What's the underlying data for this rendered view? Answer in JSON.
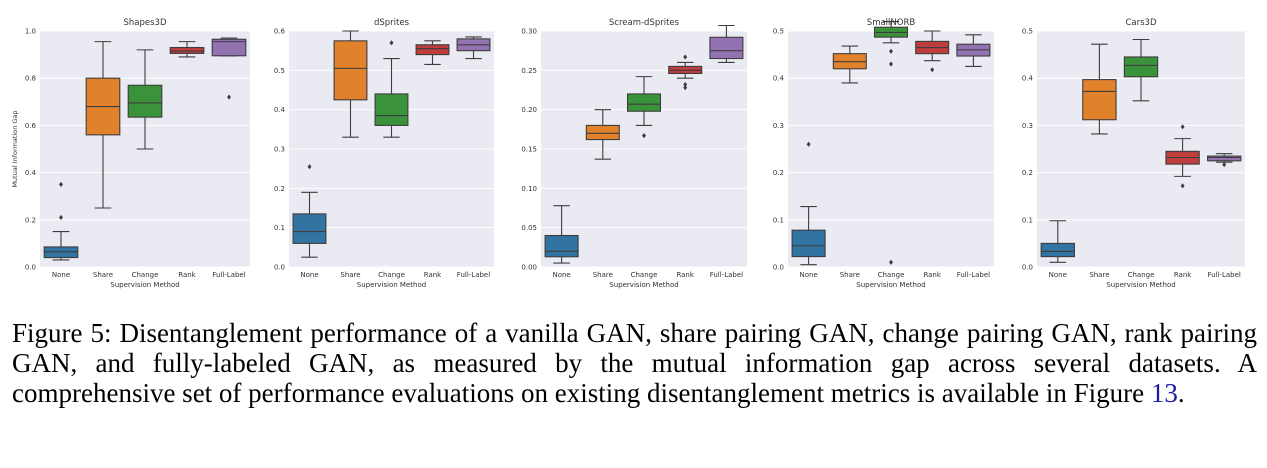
{
  "caption": {
    "text": "Figure 5: Disentanglement performance of a vanilla GAN, share pairing GAN, change pairing GAN, rank pairing GAN, and fully-labeled GAN, as measured by the mutual information gap across several datasets. A comprehensive set of performance evaluations on existing disentanglement metrics is available in Figure ",
    "ref": "13",
    "end": "."
  },
  "colors": {
    "None": "#3274a1",
    "Share": "#e1812c",
    "Change": "#3a923a",
    "Rank": "#c03d3e",
    "Full-Label": "#9372b2",
    "plot_bg": "#eaeaf2",
    "grid": "#ffffff",
    "outline": "#3d3d3d"
  },
  "chart_data": [
    {
      "type": "box",
      "title": "Shapes3D",
      "xlabel": "Supervision Method",
      "ylabel": "Mutual Information Gap",
      "categories": [
        "None",
        "Share",
        "Change",
        "Rank",
        "Full-Label"
      ],
      "ylim": [
        0,
        1.0
      ],
      "yticks": [
        0.0,
        0.2,
        0.4,
        0.6,
        0.8,
        1.0
      ],
      "ytick_labels": [
        "0.0",
        "0.2",
        "0.4",
        "0.6",
        "0.8",
        "1.0"
      ],
      "boxes": [
        {
          "whislo": 0.03,
          "q1": 0.04,
          "med": 0.065,
          "q3": 0.085,
          "whishi": 0.15,
          "fliers": [
            0.21,
            0.35
          ]
        },
        {
          "whislo": 0.25,
          "q1": 0.56,
          "med": 0.68,
          "q3": 0.8,
          "whishi": 0.955,
          "fliers": []
        },
        {
          "whislo": 0.5,
          "q1": 0.635,
          "med": 0.695,
          "q3": 0.77,
          "whishi": 0.92,
          "fliers": []
        },
        {
          "whislo": 0.89,
          "q1": 0.905,
          "med": 0.915,
          "q3": 0.93,
          "whishi": 0.955,
          "fliers": []
        },
        {
          "whislo": 0.895,
          "q1": 0.895,
          "med": 0.955,
          "q3": 0.965,
          "whishi": 0.97,
          "fliers": [
            0.72
          ]
        }
      ]
    },
    {
      "type": "box",
      "title": "dSprites",
      "xlabel": "Supervision Method",
      "ylabel": "",
      "categories": [
        "None",
        "Share",
        "Change",
        "Rank",
        "Full-Label"
      ],
      "ylim": [
        0,
        0.6
      ],
      "yticks": [
        0.0,
        0.1,
        0.2,
        0.3,
        0.4,
        0.5,
        0.6
      ],
      "ytick_labels": [
        "0.0",
        "0.1",
        "0.2",
        "0.3",
        "0.4",
        "0.5",
        "0.6"
      ],
      "boxes": [
        {
          "whislo": 0.025,
          "q1": 0.06,
          "med": 0.09,
          "q3": 0.135,
          "whishi": 0.19,
          "fliers": [
            0.255
          ]
        },
        {
          "whislo": 0.33,
          "q1": 0.425,
          "med": 0.505,
          "q3": 0.575,
          "whishi": 0.6,
          "fliers": []
        },
        {
          "whislo": 0.33,
          "q1": 0.36,
          "med": 0.385,
          "q3": 0.44,
          "whishi": 0.53,
          "fliers": [
            0.57
          ]
        },
        {
          "whislo": 0.515,
          "q1": 0.54,
          "med": 0.555,
          "q3": 0.565,
          "whishi": 0.575,
          "fliers": []
        },
        {
          "whislo": 0.53,
          "q1": 0.55,
          "med": 0.565,
          "q3": 0.58,
          "whishi": 0.585,
          "fliers": []
        }
      ]
    },
    {
      "type": "box",
      "title": "Scream-dSprites",
      "xlabel": "Supervision Method",
      "ylabel": "",
      "categories": [
        "None",
        "Share",
        "Change",
        "Rank",
        "Full-Label"
      ],
      "ylim": [
        0,
        0.3
      ],
      "yticks": [
        0.0,
        0.05,
        0.1,
        0.15,
        0.2,
        0.25,
        0.3
      ],
      "ytick_labels": [
        "0.00",
        "0.05",
        "0.10",
        "0.15",
        "0.20",
        "0.25",
        "0.30"
      ],
      "boxes": [
        {
          "whislo": 0.005,
          "q1": 0.013,
          "med": 0.02,
          "q3": 0.04,
          "whishi": 0.078,
          "fliers": []
        },
        {
          "whislo": 0.137,
          "q1": 0.162,
          "med": 0.17,
          "q3": 0.18,
          "whishi": 0.2,
          "fliers": []
        },
        {
          "whislo": 0.18,
          "q1": 0.198,
          "med": 0.207,
          "q3": 0.22,
          "whishi": 0.242,
          "fliers": [
            0.167
          ]
        },
        {
          "whislo": 0.24,
          "q1": 0.246,
          "med": 0.25,
          "q3": 0.255,
          "whishi": 0.26,
          "fliers": [
            0.228,
            0.232,
            0.267
          ]
        },
        {
          "whislo": 0.26,
          "q1": 0.265,
          "med": 0.275,
          "q3": 0.292,
          "whishi": 0.307,
          "fliers": []
        }
      ]
    },
    {
      "type": "box",
      "title": "SmallNORB",
      "xlabel": "Supervision Method",
      "ylabel": "",
      "categories": [
        "None",
        "Share",
        "Change",
        "Rank",
        "Full-Label"
      ],
      "ylim": [
        0,
        0.5
      ],
      "yticks": [
        0.0,
        0.1,
        0.2,
        0.3,
        0.4,
        0.5
      ],
      "ytick_labels": [
        "0.0",
        "0.1",
        "0.2",
        "0.3",
        "0.4",
        "0.5"
      ],
      "boxes": [
        {
          "whislo": 0.005,
          "q1": 0.022,
          "med": 0.045,
          "q3": 0.078,
          "whishi": 0.128,
          "fliers": [
            0.26
          ]
        },
        {
          "whislo": 0.39,
          "q1": 0.42,
          "med": 0.435,
          "q3": 0.452,
          "whishi": 0.468,
          "fliers": []
        },
        {
          "whislo": 0.475,
          "q1": 0.487,
          "med": 0.497,
          "q3": 0.508,
          "whishi": 0.52,
          "fliers": [
            0.01,
            0.43,
            0.457
          ]
        },
        {
          "whislo": 0.437,
          "q1": 0.452,
          "med": 0.465,
          "q3": 0.478,
          "whishi": 0.5,
          "fliers": [
            0.418
          ]
        },
        {
          "whislo": 0.425,
          "q1": 0.447,
          "med": 0.46,
          "q3": 0.472,
          "whishi": 0.492,
          "fliers": []
        }
      ]
    },
    {
      "type": "box",
      "title": "Cars3D",
      "xlabel": "Supervision Method",
      "ylabel": "",
      "categories": [
        "None",
        "Share",
        "Change",
        "Rank",
        "Full-Label"
      ],
      "ylim": [
        0,
        0.5
      ],
      "yticks": [
        0.0,
        0.1,
        0.2,
        0.3,
        0.4,
        0.5
      ],
      "ytick_labels": [
        "0.0",
        "0.1",
        "0.2",
        "0.3",
        "0.4",
        "0.5"
      ],
      "boxes": [
        {
          "whislo": 0.01,
          "q1": 0.022,
          "med": 0.033,
          "q3": 0.05,
          "whishi": 0.098,
          "fliers": []
        },
        {
          "whislo": 0.282,
          "q1": 0.312,
          "med": 0.372,
          "q3": 0.397,
          "whishi": 0.472,
          "fliers": []
        },
        {
          "whislo": 0.352,
          "q1": 0.403,
          "med": 0.427,
          "q3": 0.445,
          "whishi": 0.482,
          "fliers": []
        },
        {
          "whislo": 0.192,
          "q1": 0.218,
          "med": 0.232,
          "q3": 0.245,
          "whishi": 0.272,
          "fliers": [
            0.172,
            0.297
          ]
        },
        {
          "whislo": 0.222,
          "q1": 0.225,
          "med": 0.232,
          "q3": 0.235,
          "whishi": 0.24,
          "fliers": [
            0.217
          ]
        }
      ]
    }
  ]
}
